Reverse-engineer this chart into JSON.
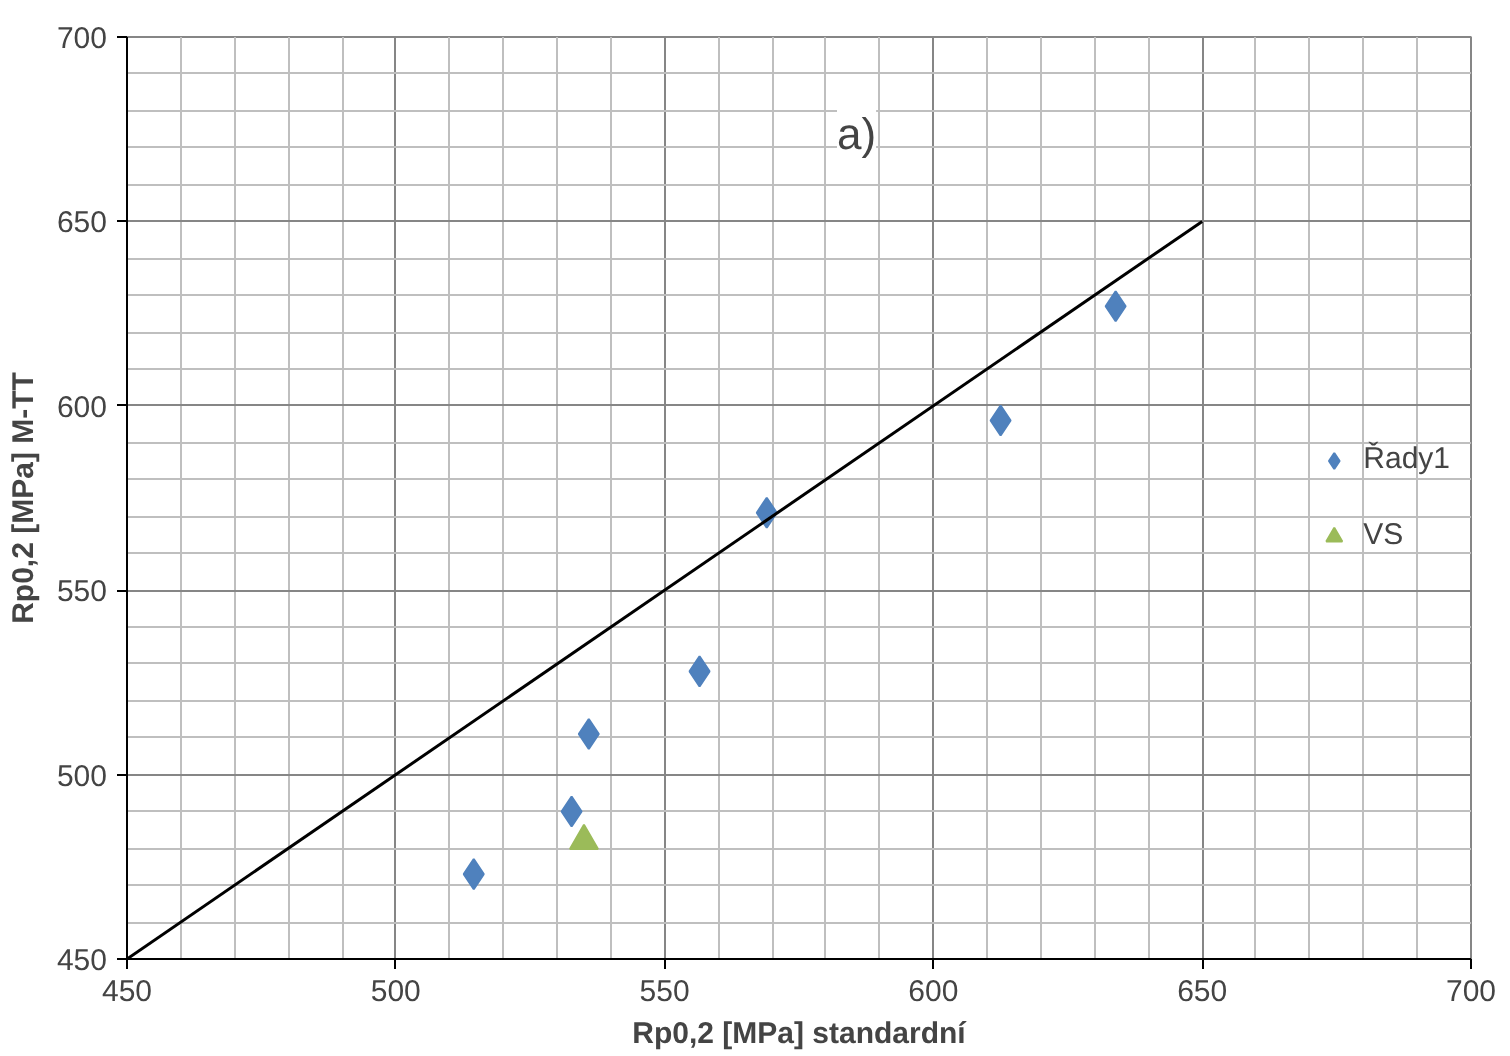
{
  "chart_data": {
    "type": "scatter",
    "xlabel": "Rp0,2 [MPa] standardní",
    "ylabel": "Rp0,2 [MPa] M-TT",
    "annotations": [
      "a)"
    ],
    "xlim": [
      450,
      700
    ],
    "ylim": [
      450,
      700
    ],
    "xticks": [
      450,
      500,
      550,
      600,
      650,
      700
    ],
    "yticks": [
      450,
      500,
      550,
      600,
      650,
      700
    ],
    "grid": true,
    "legend": "right",
    "series": [
      {
        "name": "Řady1",
        "color": "#4f81bd",
        "marker": "diamond",
        "x": [
          514.5,
          532.7,
          535.9,
          556.5,
          569,
          612.5,
          633.9
        ],
        "values": [
          473,
          490,
          511,
          528,
          571,
          596,
          627
        ]
      },
      {
        "name": "VS",
        "color": "#9bbb59",
        "marker": "triangle",
        "x": [
          535
        ],
        "values": [
          482
        ]
      },
      {
        "type": "line",
        "color": "#000000",
        "x": [
          450,
          650
        ],
        "values": [
          450,
          650
        ]
      }
    ]
  }
}
